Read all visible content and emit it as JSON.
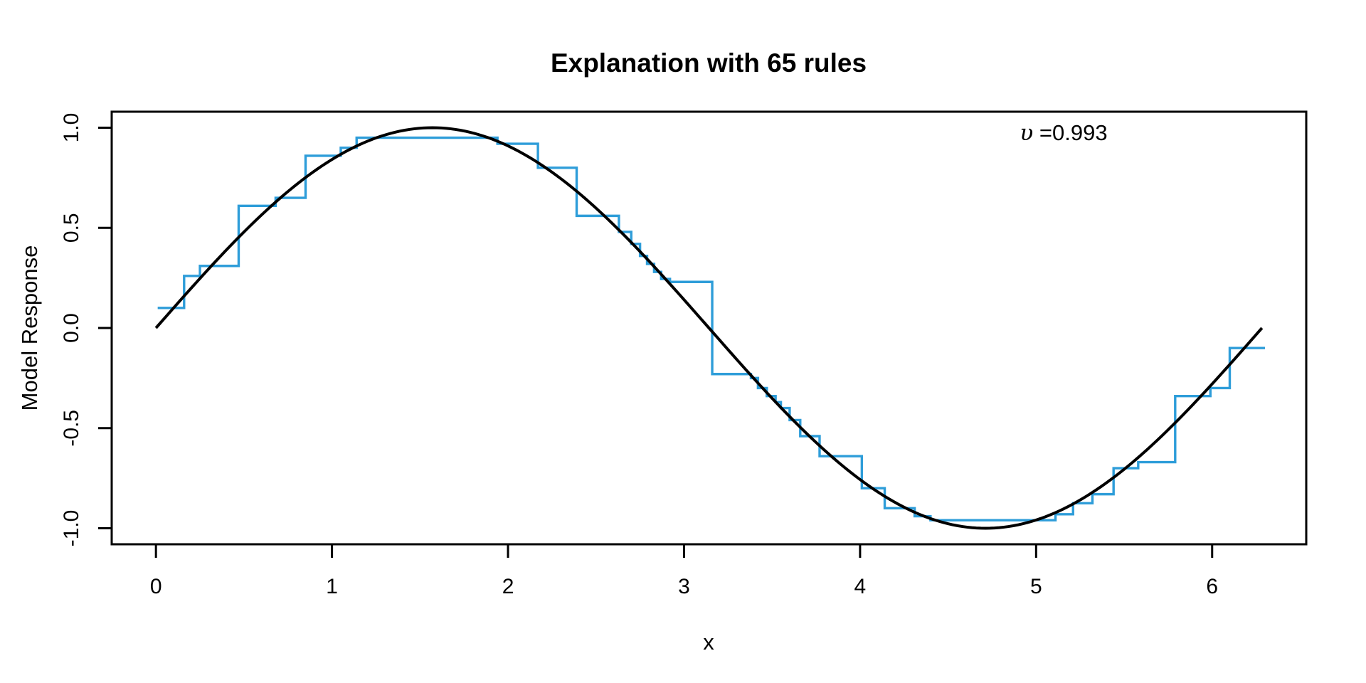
{
  "chart_data": {
    "type": "line",
    "title": "Explanation with 65 rules",
    "xlabel": "x",
    "ylabel": "Model Response",
    "annotation": {
      "symbol": "υ",
      "text": " =0.993"
    },
    "x_ticks": {
      "values": [
        0,
        1,
        2,
        3,
        4,
        5,
        6
      ],
      "labels": [
        "0",
        "1",
        "2",
        "3",
        "4",
        "5",
        "6"
      ]
    },
    "y_ticks": {
      "values": [
        -1.0,
        -0.5,
        0.0,
        0.5,
        1.0
      ],
      "labels": [
        "-1.0",
        "-0.5",
        "0.0",
        "0.5",
        "1.0"
      ]
    },
    "xlim": [
      -0.2513,
      6.5345
    ],
    "ylim": [
      -1.08,
      1.08
    ],
    "grid": false,
    "legend": "none",
    "series": [
      {
        "name": "model response curve",
        "type": "smooth",
        "formula": "sin(x)",
        "color": "#000000",
        "x_start": 0.0,
        "x_end": 6.2832
      },
      {
        "name": "rule explanation step function",
        "type": "step",
        "color": "#2E9DD9",
        "breaks_x": [
          0.01,
          0.16,
          0.25,
          0.47,
          0.68,
          0.85,
          1.05,
          1.14,
          1.94,
          2.17,
          2.39,
          2.63,
          2.7,
          2.75,
          2.79,
          2.83,
          2.87,
          2.92,
          3.16,
          3.38,
          3.42,
          3.47,
          3.52,
          3.55,
          3.6,
          3.66,
          3.77,
          4.01,
          4.14,
          4.31,
          4.4,
          5.11,
          5.21,
          5.32,
          5.44,
          5.58,
          5.79,
          5.99,
          6.1,
          6.3
        ],
        "values": [
          0.1,
          0.26,
          0.31,
          0.61,
          0.65,
          0.86,
          0.9,
          0.95,
          0.92,
          0.8,
          0.56,
          0.48,
          0.42,
          0.36,
          0.32,
          0.28,
          0.245,
          0.23,
          -0.23,
          -0.25,
          -0.3,
          -0.34,
          -0.37,
          -0.4,
          -0.46,
          -0.54,
          -0.64,
          -0.8,
          -0.9,
          -0.94,
          -0.96,
          -0.93,
          -0.875,
          -0.83,
          -0.7,
          -0.67,
          -0.34,
          -0.3,
          -0.1
        ]
      }
    ]
  },
  "colors": {
    "background": "#FFFFFF",
    "axis": "#000000",
    "model_curve": "#000000",
    "step_curve": "#2E9DD9"
  }
}
